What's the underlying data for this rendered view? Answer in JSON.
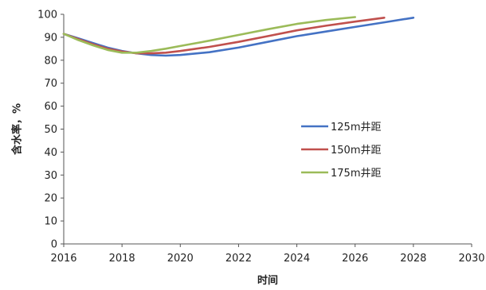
{
  "chart_data": {
    "type": "line",
    "title": "",
    "xlabel": "时间",
    "ylabel": "含水率，%",
    "xlim": [
      2016,
      2030
    ],
    "ylim": [
      0,
      100
    ],
    "xticks": [
      2016,
      2018,
      2020,
      2022,
      2024,
      2026,
      2028,
      2030
    ],
    "yticks": [
      0,
      10,
      20,
      30,
      40,
      50,
      60,
      70,
      80,
      90,
      100
    ],
    "grid": false,
    "legend_position": "right",
    "series": [
      {
        "name": "125m井距",
        "color": "#4472C4",
        "x": [
          2016,
          2016.5,
          2017,
          2017.5,
          2018,
          2018.5,
          2019,
          2019.5,
          2020,
          2021,
          2022,
          2023,
          2024,
          2025,
          2026,
          2027,
          2028
        ],
        "y": [
          91.5,
          89.5,
          87.5,
          85.5,
          84.0,
          83.0,
          82.3,
          82.0,
          82.3,
          83.5,
          85.5,
          88.0,
          90.5,
          92.5,
          94.5,
          96.5,
          98.5
        ]
      },
      {
        "name": "150m井距",
        "color": "#C0504D",
        "x": [
          2016,
          2016.5,
          2017,
          2017.5,
          2018,
          2018.5,
          2019,
          2019.5,
          2020,
          2021,
          2022,
          2023,
          2024,
          2025,
          2026,
          2027
        ],
        "y": [
          91.5,
          89.2,
          87.0,
          85.0,
          83.8,
          83.0,
          83.0,
          83.3,
          84.0,
          85.8,
          88.0,
          90.5,
          93.0,
          95.0,
          96.8,
          98.5
        ]
      },
      {
        "name": "175m井距",
        "color": "#9BBB59",
        "x": [
          2016,
          2016.5,
          2017,
          2017.5,
          2018,
          2018.5,
          2019,
          2019.5,
          2020,
          2021,
          2022,
          2023,
          2024,
          2025,
          2026
        ],
        "y": [
          91.5,
          88.8,
          86.5,
          84.5,
          83.3,
          83.3,
          84.0,
          85.0,
          86.2,
          88.5,
          91.0,
          93.5,
          95.8,
          97.5,
          98.8
        ]
      }
    ]
  }
}
